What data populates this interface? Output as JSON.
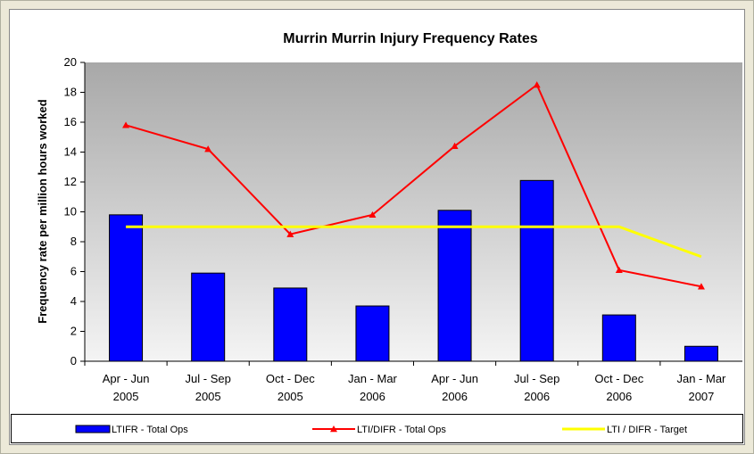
{
  "chart_data": {
    "type": "bar_line",
    "title": "Murrin Murrin Injury Frequency Rates",
    "y_label": "Frequency rate per million hours worked",
    "categories": [
      "Apr - Jun\n2005",
      "Jul - Sep\n2005",
      "Oct - Dec\n2005",
      "Jan - Mar\n2006",
      "Apr - Jun\n2006",
      "Jul - Sep\n2006",
      "Oct - Dec\n2006",
      "Jan - Mar\n2007"
    ],
    "series": [
      {
        "name": "LTIFR - Total Ops",
        "type": "bar",
        "color": "#0000ff",
        "values": [
          9.8,
          5.9,
          4.9,
          3.7,
          10.1,
          12.1,
          3.1,
          1.0
        ]
      },
      {
        "name": "LTI/DIFR - Total Ops",
        "type": "line",
        "marker": "triangle",
        "color": "#ff0000",
        "values": [
          15.8,
          14.2,
          8.5,
          9.8,
          14.4,
          18.5,
          6.1,
          5.0
        ]
      },
      {
        "name": "LTI / DIFR - Target",
        "type": "line",
        "color": "#ffff00",
        "values": [
          9,
          9,
          9,
          9,
          9,
          9,
          9,
          7
        ]
      }
    ],
    "ylim": [
      0,
      20
    ],
    "yticks": [
      0,
      2,
      4,
      6,
      8,
      10,
      12,
      14,
      16,
      18,
      20
    ],
    "legend": "bottom"
  }
}
